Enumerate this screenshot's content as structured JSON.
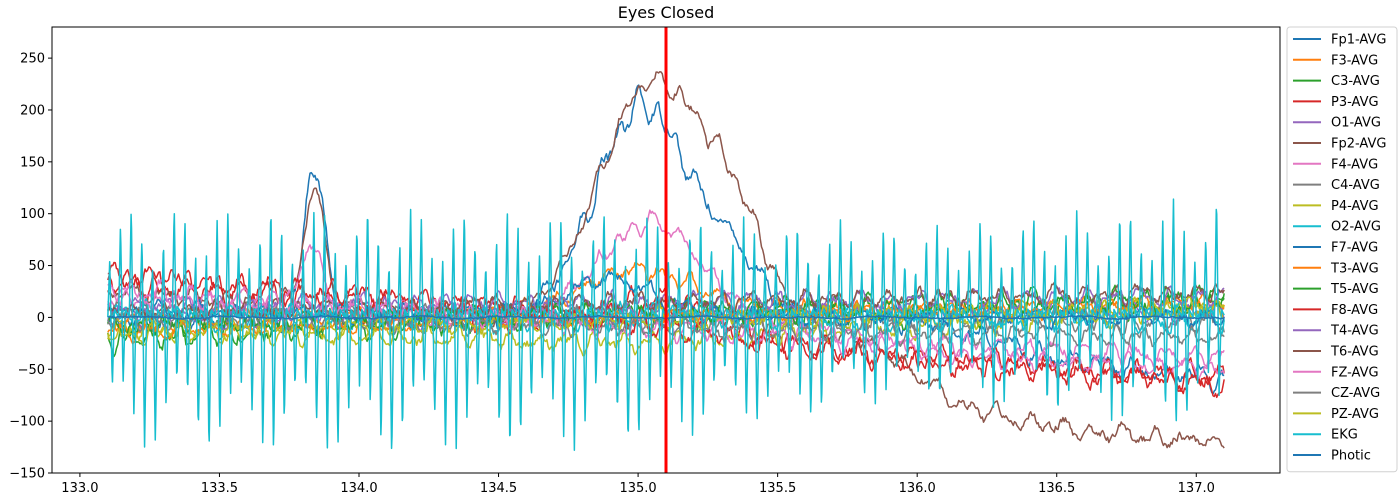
{
  "chart_data": {
    "type": "line",
    "title": "Eyes Closed",
    "xlabel": "",
    "ylabel": "",
    "xlim": [
      132.9,
      137.3
    ],
    "ylim": [
      -150,
      280
    ],
    "xticks": [
      "133.0",
      "133.5",
      "134.0",
      "134.5",
      "135.0",
      "135.5",
      "136.0",
      "136.5",
      "137.0"
    ],
    "yticks": [
      "−150",
      "−100",
      "−50",
      "0",
      "50",
      "100",
      "150",
      "200",
      "250"
    ],
    "x_range": [
      133.1,
      137.1
    ],
    "grid": false,
    "legend_position": "outside right",
    "vertical_marker": {
      "x": 135.1,
      "color": "#ff0000"
    },
    "series": [
      {
        "name": "Fp1-AVG",
        "color": "#1f77b4",
        "base": 12,
        "amp": 12,
        "freq": 9,
        "bumps": [
          {
            "x": 133.84,
            "h": 152,
            "w": 0.035
          },
          {
            "x": 135.02,
            "h": 205,
            "w": 0.17
          },
          {
            "x": 135.35,
            "h": 45,
            "w": 0.1
          }
        ],
        "drift": [
          {
            "x": 133.1,
            "y": 0
          },
          {
            "x": 136.0,
            "y": 0
          },
          {
            "x": 136.5,
            "y": -40
          },
          {
            "x": 137.1,
            "y": -60
          }
        ]
      },
      {
        "name": "F3-AVG",
        "color": "#ff7f0e",
        "base": 15,
        "amp": 10,
        "freq": 10,
        "bumps": [
          {
            "x": 135.0,
            "h": 40,
            "w": 0.2
          }
        ],
        "drift": [
          {
            "x": 133.1,
            "y": -5
          },
          {
            "x": 134.5,
            "y": 5
          },
          {
            "x": 137.1,
            "y": 10
          }
        ]
      },
      {
        "name": "C3-AVG",
        "color": "#2ca02c",
        "base": -5,
        "amp": 15,
        "freq": 11,
        "bumps": [],
        "drift": [
          {
            "x": 133.1,
            "y": -20
          },
          {
            "x": 134.5,
            "y": 0
          },
          {
            "x": 136.0,
            "y": 5
          },
          {
            "x": 137.1,
            "y": 15
          }
        ]
      },
      {
        "name": "P3-AVG",
        "color": "#d62728",
        "base": 0,
        "amp": 14,
        "freq": 10,
        "bumps": [
          {
            "x": 135.1,
            "h": 35,
            "w": 0.2
          }
        ],
        "drift": [
          {
            "x": 133.1,
            "y": 35
          },
          {
            "x": 134.0,
            "y": 15
          },
          {
            "x": 135.5,
            "y": -30
          },
          {
            "x": 137.1,
            "y": -60
          }
        ]
      },
      {
        "name": "O1-AVG",
        "color": "#9467bd",
        "base": 0,
        "amp": 10,
        "freq": 10,
        "bumps": [],
        "drift": [
          {
            "x": 133.1,
            "y": 0
          },
          {
            "x": 137.1,
            "y": 5
          }
        ]
      },
      {
        "name": "Fp2-AVG",
        "color": "#8c564b",
        "base": 15,
        "amp": 10,
        "freq": 9,
        "bumps": [
          {
            "x": 133.84,
            "h": 110,
            "w": 0.04
          },
          {
            "x": 135.05,
            "h": 235,
            "w": 0.19
          },
          {
            "x": 135.35,
            "h": 80,
            "w": 0.12
          }
        ],
        "drift": [
          {
            "x": 133.1,
            "y": 25
          },
          {
            "x": 134.0,
            "y": 5
          },
          {
            "x": 135.8,
            "y": -20
          },
          {
            "x": 136.2,
            "y": -90
          },
          {
            "x": 136.6,
            "y": -110
          },
          {
            "x": 137.1,
            "y": -120
          }
        ]
      },
      {
        "name": "F4-AVG",
        "color": "#e377c2",
        "base": 10,
        "amp": 10,
        "freq": 10,
        "bumps": [
          {
            "x": 133.83,
            "h": 60,
            "w": 0.035
          },
          {
            "x": 135.05,
            "h": 95,
            "w": 0.18
          }
        ],
        "drift": [
          {
            "x": 133.1,
            "y": 20
          },
          {
            "x": 135.6,
            "y": -10
          },
          {
            "x": 136.2,
            "y": -40
          },
          {
            "x": 137.1,
            "y": -50
          }
        ]
      },
      {
        "name": "C4-AVG",
        "color": "#7f7f7f",
        "base": 0,
        "amp": 12,
        "freq": 11,
        "bumps": [],
        "drift": [
          {
            "x": 133.1,
            "y": 5
          },
          {
            "x": 137.1,
            "y": -5
          }
        ]
      },
      {
        "name": "P4-AVG",
        "color": "#bcbd22",
        "base": 0,
        "amp": 12,
        "freq": 10,
        "bumps": [],
        "drift": [
          {
            "x": 133.1,
            "y": -10
          },
          {
            "x": 135.0,
            "y": -25
          },
          {
            "x": 137.1,
            "y": 10
          }
        ]
      },
      {
        "name": "O2-AVG",
        "color": "#17becf",
        "base": 0,
        "amp": 14,
        "freq": 10,
        "bumps": [],
        "drift": [
          {
            "x": 133.1,
            "y": 0
          },
          {
            "x": 137.1,
            "y": 0
          }
        ]
      },
      {
        "name": "F7-AVG",
        "color": "#1f77b4",
        "base": 0,
        "amp": 10,
        "freq": 8,
        "bumps": [
          {
            "x": 134.9,
            "h": 35,
            "w": 0.15
          }
        ],
        "drift": [
          {
            "x": 133.1,
            "y": 5
          },
          {
            "x": 137.1,
            "y": 0
          }
        ]
      },
      {
        "name": "T3-AVG",
        "color": "#ff7f0e",
        "base": 5,
        "amp": 8,
        "freq": 9,
        "bumps": [],
        "drift": [
          {
            "x": 133.1,
            "y": -15
          },
          {
            "x": 137.1,
            "y": 15
          }
        ]
      },
      {
        "name": "T5-AVG",
        "color": "#2ca02c",
        "base": 0,
        "amp": 12,
        "freq": 10,
        "bumps": [],
        "drift": [
          {
            "x": 133.1,
            "y": -10
          },
          {
            "x": 137.1,
            "y": 20
          }
        ]
      },
      {
        "name": "F8-AVG",
        "color": "#d62728",
        "base": 0,
        "amp": 12,
        "freq": 9,
        "bumps": [],
        "drift": [
          {
            "x": 133.1,
            "y": 40
          },
          {
            "x": 134.5,
            "y": 10
          },
          {
            "x": 136.0,
            "y": -40
          },
          {
            "x": 137.1,
            "y": -65
          }
        ]
      },
      {
        "name": "T4-AVG",
        "color": "#9467bd",
        "base": 0,
        "amp": 10,
        "freq": 10,
        "bumps": [],
        "drift": [
          {
            "x": 133.1,
            "y": 10
          },
          {
            "x": 137.1,
            "y": 20
          }
        ]
      },
      {
        "name": "T6-AVG",
        "color": "#8c564b",
        "base": 0,
        "amp": 10,
        "freq": 10,
        "bumps": [],
        "drift": [
          {
            "x": 133.1,
            "y": 5
          },
          {
            "x": 137.1,
            "y": 25
          }
        ]
      },
      {
        "name": "FZ-AVG",
        "color": "#e377c2",
        "base": 0,
        "amp": 12,
        "freq": 10,
        "bumps": [],
        "drift": [
          {
            "x": 133.1,
            "y": 25
          },
          {
            "x": 135.0,
            "y": -10
          },
          {
            "x": 137.1,
            "y": -40
          }
        ]
      },
      {
        "name": "CZ-AVG",
        "color": "#7f7f7f",
        "base": 0,
        "amp": 10,
        "freq": 11,
        "bumps": [],
        "drift": [
          {
            "x": 133.1,
            "y": 0
          },
          {
            "x": 137.1,
            "y": -20
          }
        ]
      },
      {
        "name": "PZ-AVG",
        "color": "#bcbd22",
        "base": 0,
        "amp": 10,
        "freq": 10,
        "bumps": [],
        "drift": [
          {
            "x": 133.1,
            "y": -15
          },
          {
            "x": 137.1,
            "y": 10
          }
        ]
      },
      {
        "name": "EKG",
        "color": "#17becf",
        "kind": "ekg",
        "period": 0.0385,
        "envelope": [
          {
            "x": 133.1,
            "hi": 95,
            "lo": -110
          },
          {
            "x": 134.0,
            "hi": 95,
            "lo": -120
          },
          {
            "x": 135.0,
            "hi": 90,
            "lo": -110
          },
          {
            "x": 136.0,
            "hi": 80,
            "lo": -70
          },
          {
            "x": 137.1,
            "hi": 105,
            "lo": -100
          }
        ]
      },
      {
        "name": "Photic",
        "color": "#1f77b4",
        "base": 0,
        "amp": 1.5,
        "freq": 3,
        "bumps": [],
        "drift": [
          {
            "x": 133.1,
            "y": 0
          },
          {
            "x": 137.1,
            "y": 0
          }
        ]
      }
    ]
  }
}
